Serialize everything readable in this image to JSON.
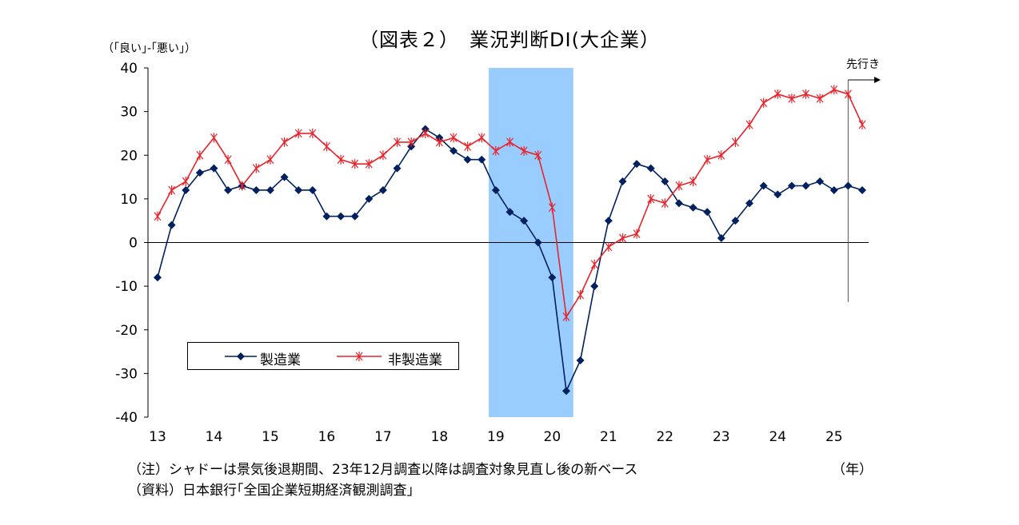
{
  "chart_data": {
    "type": "line",
    "title": "（図表２）　業況判断DI(大企業）",
    "ylabel": "（｢良い｣-｢悪い｣）",
    "xlabel": "（年）",
    "ylim": [
      -40,
      40
    ],
    "yticks": [
      40,
      30,
      20,
      10,
      0,
      -10,
      -20,
      -30,
      -40
    ],
    "xlim": [
      2013,
      2025.75
    ],
    "xtick_labels": [
      "13",
      "14",
      "15",
      "16",
      "17",
      "18",
      "19",
      "20",
      "21",
      "22",
      "23",
      "24",
      "25"
    ],
    "x": [
      2013.0,
      2013.25,
      2013.5,
      2013.75,
      2014.0,
      2014.25,
      2014.5,
      2014.75,
      2015.0,
      2015.25,
      2015.5,
      2015.75,
      2016.0,
      2016.25,
      2016.5,
      2016.75,
      2017.0,
      2017.25,
      2017.5,
      2017.75,
      2018.0,
      2018.25,
      2018.5,
      2018.75,
      2019.0,
      2019.25,
      2019.5,
      2019.75,
      2020.0,
      2020.25,
      2020.5,
      2020.75,
      2021.0,
      2021.25,
      2021.5,
      2021.75,
      2022.0,
      2022.25,
      2022.5,
      2022.75,
      2023.0,
      2023.25,
      2023.5,
      2023.75,
      2024.0,
      2024.25,
      2024.5,
      2024.75,
      2025.0,
      2025.25,
      2025.5
    ],
    "series": [
      {
        "name": "製造業",
        "color": "#002060",
        "marker": "diamond",
        "values": [
          -8,
          4,
          12,
          16,
          17,
          12,
          13,
          12,
          12,
          15,
          12,
          12,
          6,
          6,
          6,
          10,
          12,
          17,
          22,
          26,
          24,
          21,
          19,
          19,
          12,
          7,
          5,
          0,
          -8,
          -34,
          -27,
          -10,
          5,
          14,
          18,
          17,
          14,
          9,
          8,
          7,
          1,
          5,
          9,
          13,
          11,
          13,
          13,
          14,
          12,
          13,
          12
        ]
      },
      {
        "name": "非製造業",
        "color": "#e8242b",
        "marker": "asterisk",
        "values": [
          6,
          12,
          14,
          20,
          24,
          19,
          13,
          17,
          19,
          23,
          25,
          25,
          22,
          19,
          18,
          18,
          20,
          23,
          23,
          25,
          23,
          24,
          22,
          24,
          21,
          23,
          21,
          20,
          8,
          -17,
          -12,
          -5,
          -1,
          1,
          2,
          10,
          9,
          13,
          14,
          19,
          20,
          23,
          27,
          32,
          34,
          33,
          34,
          33,
          35,
          34,
          27
        ]
      }
    ],
    "shaded_region": {
      "x_start": 2018.875,
      "x_end": 2020.375,
      "color": "#99ccff"
    },
    "forecast_marker": {
      "x": 2025.25,
      "label": "先行き"
    },
    "legend_placement": "lower-left",
    "grid": false
  },
  "notes": {
    "note1": "（注）シャドーは景気後退期間、23年12月調査以降は調査対象見直し後の新ベース",
    "note2": "（資料）日本銀行｢全国企業短期経済観測調査」"
  }
}
